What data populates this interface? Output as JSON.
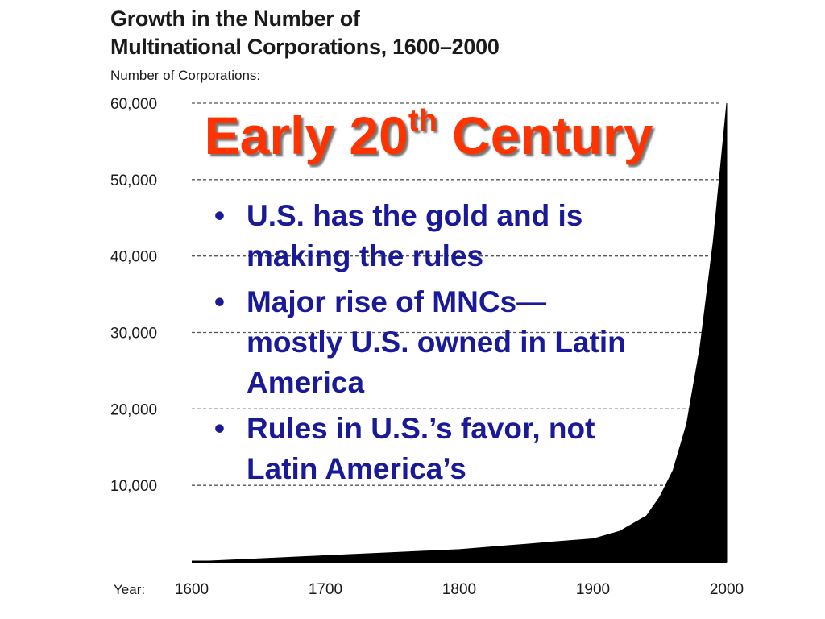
{
  "chart_data": {
    "type": "area",
    "title": [
      "Growth in the Number of",
      "Multinational Corporations, 1600–2000"
    ],
    "ylabel": "Number of Corporations:",
    "xlabel": "Year:",
    "x_ticks": [
      1600,
      1700,
      1800,
      1900,
      2000
    ],
    "y_ticks": [
      10000,
      20000,
      30000,
      40000,
      50000,
      60000
    ],
    "y_tick_labels": [
      "10,000",
      "20,000",
      "30,000",
      "40,000",
      "50,000",
      "60,000"
    ],
    "x_tick_labels": [
      "1600",
      "1700",
      "1800",
      "1900",
      "2000"
    ],
    "xlim": [
      1600,
      2000
    ],
    "ylim": [
      0,
      60000
    ],
    "grid": true,
    "series": [
      {
        "x": [
          1600,
          1650,
          1700,
          1750,
          1800,
          1850,
          1870,
          1900,
          1920,
          1940,
          1950,
          1960,
          1970,
          1980,
          1990,
          2000
        ],
        "y": [
          0,
          400,
          800,
          1200,
          1600,
          2300,
          2600,
          3000,
          4000,
          6000,
          8500,
          12000,
          18000,
          28000,
          42000,
          60000
        ]
      }
    ],
    "color": "#000000"
  },
  "slide": {
    "heading_main": "Early 20",
    "heading_sup": "th",
    "heading_end": " Century",
    "heading_color": "#ff3300",
    "bullet_color": "#1a1a99",
    "bullet_symbol": "•",
    "bullets": [
      "U.S. has the gold and is making the rules",
      "Major rise of MNCs—mostly U.S. owned in Latin America",
      "Rules in U.S.’s favor, not Latin America’s"
    ]
  }
}
